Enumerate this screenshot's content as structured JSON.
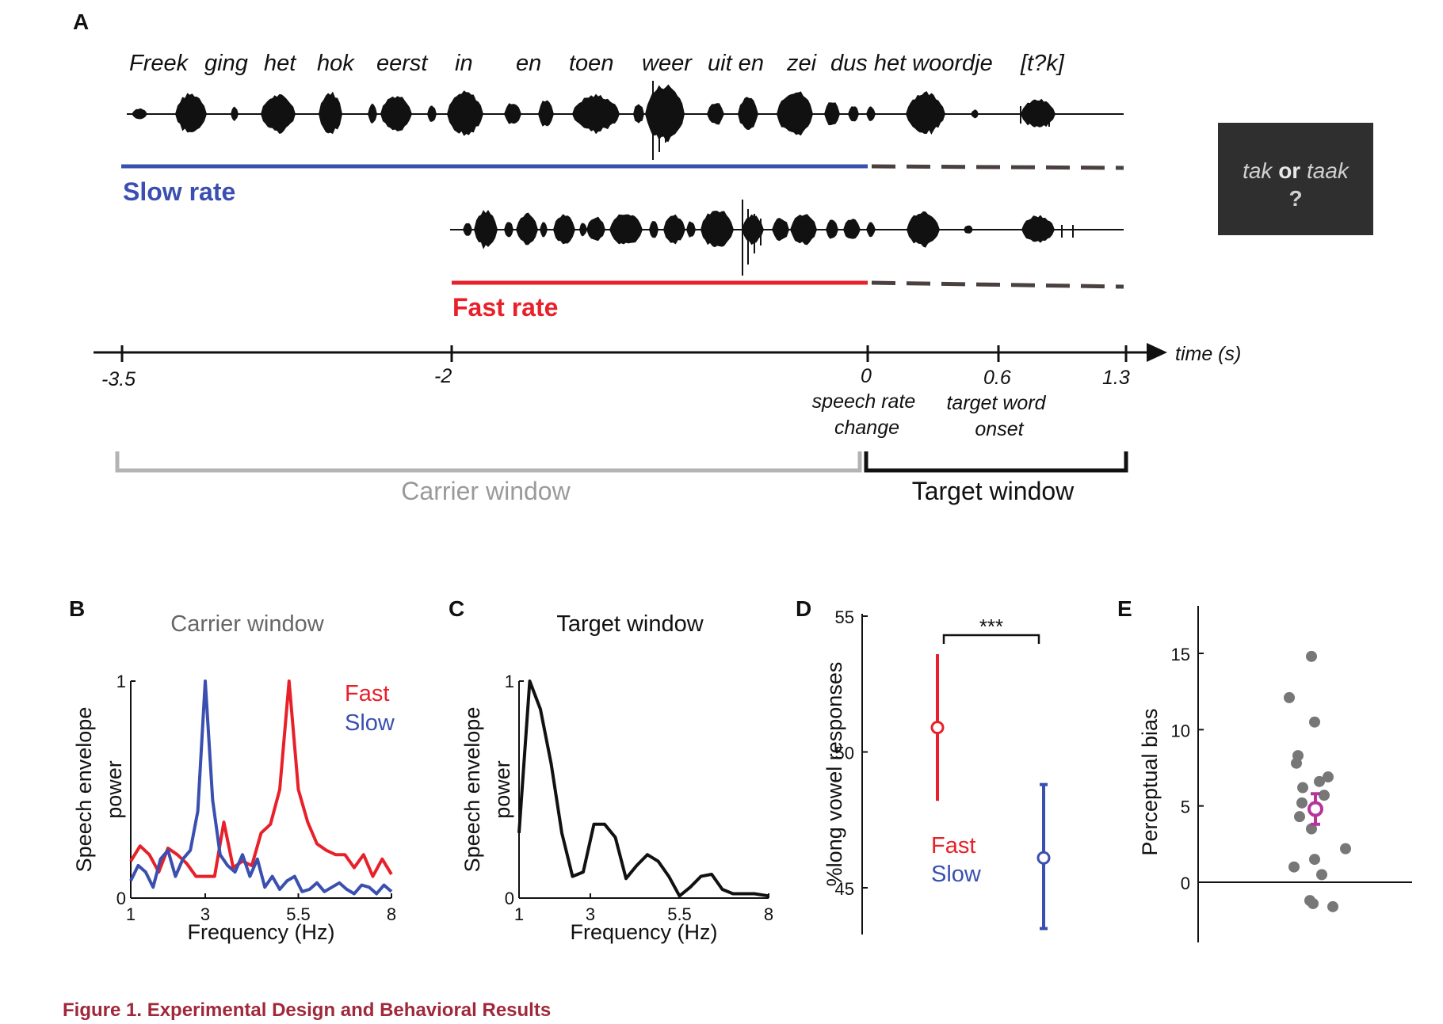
{
  "panel_letters": {
    "a": "A",
    "b": "B",
    "c": "C",
    "d": "D",
    "e": "E"
  },
  "panel_a": {
    "sentence_words": [
      "Freek",
      "ging",
      "het",
      "hok",
      "eerst",
      "in",
      "en",
      "toen",
      "weer",
      "uit en",
      "zei",
      "dus het woordje",
      "[t?k]"
    ],
    "slow_label": "Slow rate",
    "fast_label": "Fast rate",
    "time_axis_label": "time (s)",
    "ticks": [
      "-3.5",
      "-2",
      "0",
      "0.6",
      "1.3"
    ],
    "speech_rate_change": [
      "speech rate",
      "change"
    ],
    "target_word_onset": [
      "target word",
      "onset"
    ],
    "carrier_window": "Carrier window",
    "target_window": "Target window",
    "response_box": {
      "word1": "tak",
      "or": "or",
      "word2": "taak",
      "q": "?"
    },
    "colors": {
      "slow": "#3a4fb0",
      "fast": "#e8202a",
      "carrier_bracket": "#b3b3b3",
      "dashed": "#4a4040"
    }
  },
  "chart_data": [
    {
      "panel": "B",
      "type": "line",
      "title": "Carrier window",
      "xlabel": "Frequency (Hz)",
      "ylabel": [
        "Speech envelope",
        "power"
      ],
      "x_ticks": [
        "1",
        "3",
        "5.5",
        "8"
      ],
      "y_ticks": [
        "0",
        "1"
      ],
      "xlim": [
        1,
        8
      ],
      "ylim": [
        0,
        1
      ],
      "legend": [
        "Fast",
        "Slow"
      ],
      "series": [
        {
          "name": "Fast",
          "color": "#e8202a",
          "x": [
            1,
            1.25,
            1.5,
            1.75,
            2,
            2.25,
            2.5,
            2.75,
            3,
            3.25,
            3.5,
            3.75,
            4,
            4.25,
            4.5,
            4.75,
            5,
            5.25,
            5.5,
            5.75,
            6,
            6.25,
            6.5,
            6.75,
            7,
            7.25,
            7.5,
            7.75,
            8
          ],
          "y": [
            0.17,
            0.24,
            0.2,
            0.12,
            0.23,
            0.2,
            0.16,
            0.1,
            0.1,
            0.1,
            0.35,
            0.14,
            0.17,
            0.15,
            0.3,
            0.34,
            0.5,
            1.0,
            0.5,
            0.35,
            0.25,
            0.22,
            0.2,
            0.2,
            0.14,
            0.2,
            0.1,
            0.18,
            0.11
          ]
        },
        {
          "name": "Slow",
          "color": "#3a4fb0",
          "x": [
            1,
            1.2,
            1.4,
            1.6,
            1.8,
            2,
            2.2,
            2.4,
            2.6,
            2.8,
            3,
            3.2,
            3.4,
            3.6,
            3.8,
            4,
            4.2,
            4.4,
            4.6,
            4.8,
            5,
            5.2,
            5.4,
            5.6,
            5.8,
            6,
            6.2,
            6.4,
            6.6,
            6.8,
            7,
            7.2,
            7.4,
            7.6,
            7.8,
            8
          ],
          "y": [
            0.08,
            0.15,
            0.12,
            0.05,
            0.18,
            0.22,
            0.1,
            0.18,
            0.22,
            0.4,
            1.0,
            0.45,
            0.2,
            0.15,
            0.12,
            0.2,
            0.1,
            0.18,
            0.05,
            0.1,
            0.04,
            0.08,
            0.1,
            0.03,
            0.04,
            0.07,
            0.03,
            0.05,
            0.07,
            0.04,
            0.02,
            0.06,
            0.05,
            0.02,
            0.06,
            0.03
          ]
        }
      ]
    },
    {
      "panel": "C",
      "type": "line",
      "title": "Target window",
      "xlabel": "Frequency (Hz)",
      "ylabel": [
        "Speech envelope",
        "power"
      ],
      "x_ticks": [
        "1",
        "3",
        "5.5",
        "8"
      ],
      "y_ticks": [
        "0",
        "1"
      ],
      "xlim": [
        1,
        8
      ],
      "ylim": [
        0,
        1
      ],
      "series": [
        {
          "name": "",
          "color": "#111111",
          "x": [
            1,
            1.3,
            1.6,
            1.9,
            2.2,
            2.5,
            2.8,
            3.1,
            3.4,
            3.7,
            4,
            4.3,
            4.6,
            4.9,
            5.2,
            5.5,
            5.8,
            6.1,
            6.4,
            6.7,
            7.0,
            7.3,
            7.6,
            8
          ],
          "y": [
            0.3,
            1.0,
            0.87,
            0.62,
            0.3,
            0.1,
            0.12,
            0.34,
            0.34,
            0.28,
            0.09,
            0.15,
            0.2,
            0.17,
            0.1,
            0.01,
            0.05,
            0.1,
            0.11,
            0.04,
            0.02,
            0.02,
            0.02,
            0.01
          ]
        }
      ]
    },
    {
      "panel": "D",
      "type": "scatter",
      "ylabel": "%long vowel responses",
      "y_ticks": [
        "45",
        "50",
        "55"
      ],
      "ylim": [
        43,
        55
      ],
      "significance": "***",
      "legend": [
        "Fast",
        "Slow"
      ],
      "series": [
        {
          "name": "Fast",
          "color": "#e8202a",
          "mean": 50.9,
          "ci": [
            48.2,
            53.6
          ]
        },
        {
          "name": "Slow",
          "color": "#3a4fb0",
          "mean": 46.1,
          "ci": [
            43.5,
            48.8
          ]
        }
      ]
    },
    {
      "panel": "E",
      "type": "scatter",
      "ylabel": "Perceptual bias",
      "y_ticks": [
        "0",
        "5",
        "10",
        "15"
      ],
      "ylim": [
        -3.5,
        18
      ],
      "points": [
        14.8,
        12.1,
        10.5,
        8.3,
        7.8,
        6.9,
        6.6,
        6.2,
        5.7,
        5.2,
        4.3,
        3.5,
        2.2,
        1.5,
        1.0,
        0.5,
        -1.2,
        -1.4,
        -1.6
      ],
      "mean": {
        "value": 4.8,
        "ci": [
          3.8,
          5.8
        ],
        "color": "#b5359b"
      }
    }
  ],
  "caption": "Figure 1.  Experimental Design and Behavioral Results"
}
